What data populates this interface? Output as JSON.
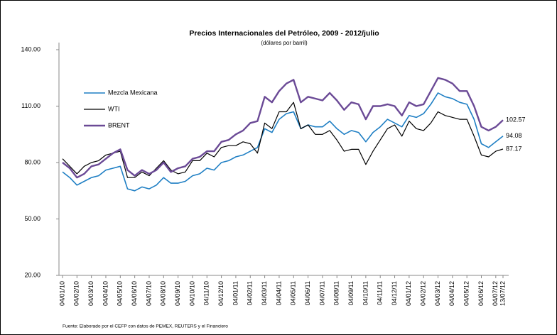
{
  "chart_data": {
    "type": "line",
    "title": "Precios Internacionales del Petróleo, 2009 - 2012/julio",
    "subtitle": "(dólares por barril)",
    "source": "Fuente: Elaborado por el CEFP con datos de PEMEX, REUTERS y el Financiero",
    "categories": [
      "04/01/10",
      null,
      "04/02/10",
      null,
      "04/03/10",
      null,
      "04/04/10",
      null,
      "04/05/10",
      null,
      "04/06/10",
      null,
      "04/07/10",
      null,
      "04/08/10",
      null,
      "04/09/10",
      null,
      "04/10/10",
      null,
      "04/11/10",
      null,
      "04/12/10",
      null,
      "04/01/11",
      null,
      "04/02/11",
      null,
      "04/03/11",
      null,
      "04/04/11",
      null,
      "04/05/11",
      null,
      "04/06/11",
      null,
      "04/07/11",
      null,
      "04/08/11",
      null,
      "04/09/11",
      null,
      "04/10/11",
      null,
      "04/11/11",
      null,
      "04/12/11",
      null,
      "04/01/12",
      null,
      "04/02/12",
      null,
      "04/03/12",
      null,
      "04/04/12",
      null,
      "04/05/12",
      null,
      "04/06/12",
      null,
      "04/07/12",
      "13/07/12"
    ],
    "series": [
      {
        "name": "Mezcla Mexicana",
        "color": "#1f7fc4",
        "width": 1.6,
        "values": [
          75,
          72,
          68,
          70,
          72,
          73,
          76,
          77,
          78,
          66,
          65,
          67,
          66,
          68,
          72,
          69,
          69,
          70,
          73,
          74,
          77,
          76,
          80,
          81,
          83,
          84,
          86,
          88,
          98,
          96,
          103,
          106,
          107,
          98,
          100,
          99,
          99,
          102,
          98,
          95,
          97,
          96,
          91,
          96,
          99,
          103,
          101,
          99,
          105,
          104,
          106,
          111,
          117,
          115,
          114,
          112,
          111,
          103,
          90,
          88,
          91,
          94.08
        ]
      },
      {
        "name": "WTI",
        "color": "#000000",
        "width": 1.2,
        "values": [
          82,
          78,
          74,
          78,
          80,
          81,
          84,
          85,
          86,
          72,
          72,
          75,
          73,
          77,
          81,
          76,
          74,
          75,
          81,
          81,
          85,
          83,
          88,
          89,
          89,
          91,
          90,
          85,
          101,
          98,
          107,
          107,
          112,
          98,
          100,
          95,
          95,
          97,
          92,
          86,
          87,
          87,
          79,
          86,
          92,
          98,
          100,
          94,
          102,
          98,
          97,
          101,
          107,
          105,
          104,
          103,
          103,
          94,
          84,
          83,
          86,
          87.17
        ]
      },
      {
        "name": "BRENT",
        "color": "#6b4a96",
        "width": 2.4,
        "values": [
          80,
          77,
          72,
          74,
          78,
          79,
          82,
          85,
          87,
          76,
          73,
          76,
          74,
          76,
          80,
          75,
          77,
          78,
          82,
          83,
          86,
          86,
          91,
          92,
          95,
          97,
          101,
          102,
          115,
          112,
          118,
          122,
          124,
          112,
          115,
          114,
          113,
          117,
          113,
          108,
          112,
          111,
          103,
          110,
          110,
          111,
          110,
          105,
          112,
          110,
          111,
          118,
          125,
          124,
          122,
          118,
          118,
          110,
          99,
          97,
          99,
          102.57
        ]
      }
    ],
    "ylim": [
      20,
      140
    ],
    "yticks": [
      {
        "value": 20,
        "label": "20.00"
      },
      {
        "value": 50,
        "label": "50.00"
      },
      {
        "value": 80,
        "label": "80.00"
      },
      {
        "value": 110,
        "label": "110.00"
      },
      {
        "value": 140,
        "label": "140.00"
      }
    ],
    "legend": "upper-left",
    "grid": false
  }
}
